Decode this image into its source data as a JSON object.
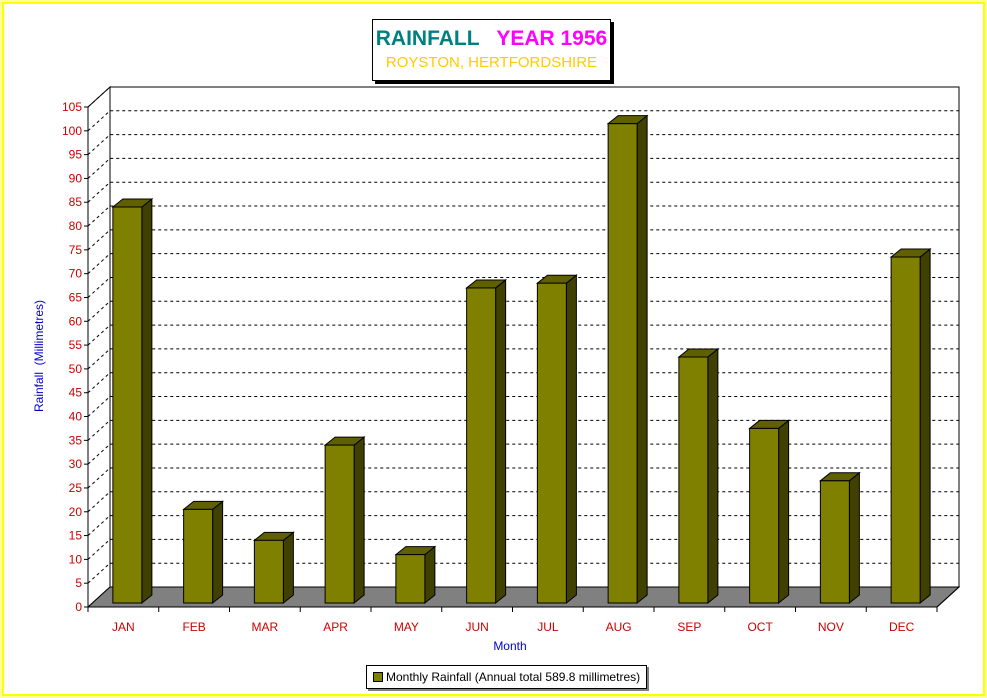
{
  "title": {
    "main": "RAINFALL",
    "year": "YEAR 1956",
    "subtitle": "ROYSTON, HERTFORDSHIRE"
  },
  "legend": {
    "label": "Monthly Rainfall (Annual total 589.8 millimetres)"
  },
  "colors": {
    "bar_front": "#808000",
    "bar_side": "#404000",
    "bar_top": "#606000",
    "floor": "#808080",
    "axis_labels": "#0000cc",
    "tick_labels": "#cc0000",
    "title_main": "#008080",
    "title_year": "#ff00ff",
    "subtitle": "#ffcc00",
    "page_bg": "#ffff99"
  },
  "chart_data": {
    "type": "bar",
    "categories": [
      "JAN",
      "FEB",
      "MAR",
      "APR",
      "MAY",
      "JUN",
      "JUL",
      "AUG",
      "SEP",
      "OCT",
      "NOV",
      "DEC"
    ],
    "series": [
      {
        "name": "Monthly Rainfall (Annual total 589.8 millimetres)",
        "values": [
          84.0,
          20.5,
          14.0,
          34.0,
          11.0,
          67.0,
          68.0,
          101.5,
          52.5,
          37.5,
          26.5,
          73.5
        ]
      }
    ],
    "xlabel": "Month",
    "ylabel": "Rainfall  (Millimetres)",
    "ylim": [
      0,
      105
    ],
    "yticks": [
      "0",
      "5",
      "10",
      "15",
      "20",
      "25",
      "30",
      "35",
      "40",
      "45",
      "50",
      "55",
      "60",
      "65",
      "70",
      "75",
      "80",
      "85",
      "90",
      "95",
      "100",
      "105"
    ],
    "grid": true,
    "legend_position": "bottom"
  }
}
